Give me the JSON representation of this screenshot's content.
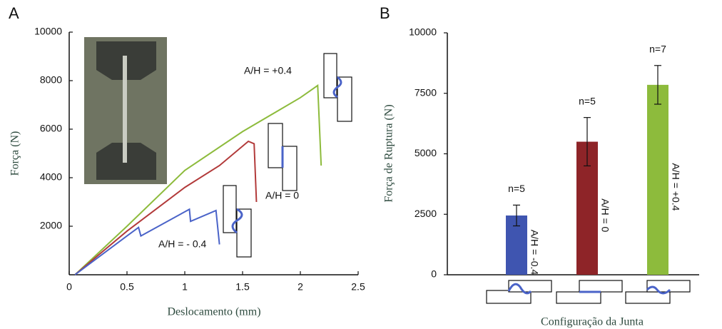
{
  "chart_data": [
    {
      "type": "line",
      "panel": "A",
      "x_label": "Deslocamento (mm)",
      "y_label": "Força (N)",
      "xlim": [
        0,
        2.5
      ],
      "ylim": [
        0,
        10000
      ],
      "xticks": [
        0,
        0.5,
        1,
        1.5,
        2,
        2.5
      ],
      "yticks": [
        2000,
        4000,
        6000,
        8000,
        10000
      ],
      "series": [
        {
          "name": "A/H = +0.4",
          "color": "#8dbb3c",
          "x": [
            0.05,
            0.5,
            1.0,
            1.5,
            2.0,
            2.15,
            2.18
          ],
          "values": [
            0,
            2000,
            4300,
            5900,
            7300,
            7800,
            4500
          ]
        },
        {
          "name": "A/H = 0",
          "color": "#b23a3a",
          "x": [
            0.05,
            0.5,
            1.0,
            1.3,
            1.55,
            1.6,
            1.62
          ],
          "values": [
            0,
            1800,
            3600,
            4500,
            5500,
            5400,
            3000
          ]
        },
        {
          "name": "A/H = - 0.4",
          "color": "#4a63c8",
          "x": [
            0.05,
            0.5,
            0.6,
            0.62,
            1.04,
            1.05,
            1.27,
            1.3
          ],
          "values": [
            0,
            1600,
            1950,
            1600,
            2700,
            2200,
            2650,
            1250
          ]
        }
      ]
    },
    {
      "type": "bar",
      "panel": "B",
      "x_label": "Configuração da Junta",
      "y_label": "Força de Ruptura (N)",
      "ylim": [
        0,
        10000
      ],
      "yticks": [
        0,
        2500,
        5000,
        7500,
        10000
      ],
      "values": [
        2450,
        5500,
        7850
      ],
      "errors": [
        430,
        1000,
        800
      ],
      "colors": [
        "#3f55b0",
        "#8e2428",
        "#8dbb3c"
      ],
      "n_labels": [
        "n=5",
        "n=5",
        "n=7"
      ],
      "bar_labels": [
        "A/H = -0.4",
        "A/H = 0",
        "A/H = +0.4"
      ]
    }
  ]
}
